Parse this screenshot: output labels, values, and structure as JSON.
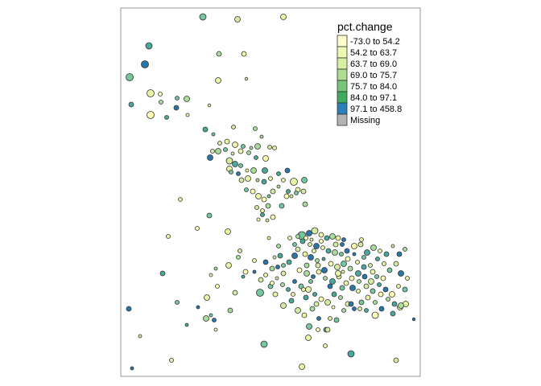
{
  "legend": {
    "title": "pct.change",
    "items": [
      {
        "label": "-73.0 to 54.2",
        "color": "#ffffcc"
      },
      {
        "label": "54.2 to 63.7",
        "color": "#edf8b1"
      },
      {
        "label": "63.7 to 69.0",
        "color": "#d9f0a3"
      },
      {
        "label": "69.0 to 75.7",
        "color": "#addd8e"
      },
      {
        "label": "75.7 to 84.0",
        "color": "#78c679"
      },
      {
        "label": "84.0 to 97.1",
        "color": "#41ab5d"
      },
      {
        "label": "97.1 to 458.8",
        "color": "#2c7fb8"
      },
      {
        "label": "Missing",
        "color": "#b3b3b3"
      }
    ]
  },
  "colors": {
    "frame": "#999999",
    "point_stroke": "#333333",
    "palette": [
      "#ffffb2",
      "#e9f5a5",
      "#d2eba0",
      "#a8dc9b",
      "#74c69d",
      "#4aa89b",
      "#2b76a8"
    ]
  }
}
